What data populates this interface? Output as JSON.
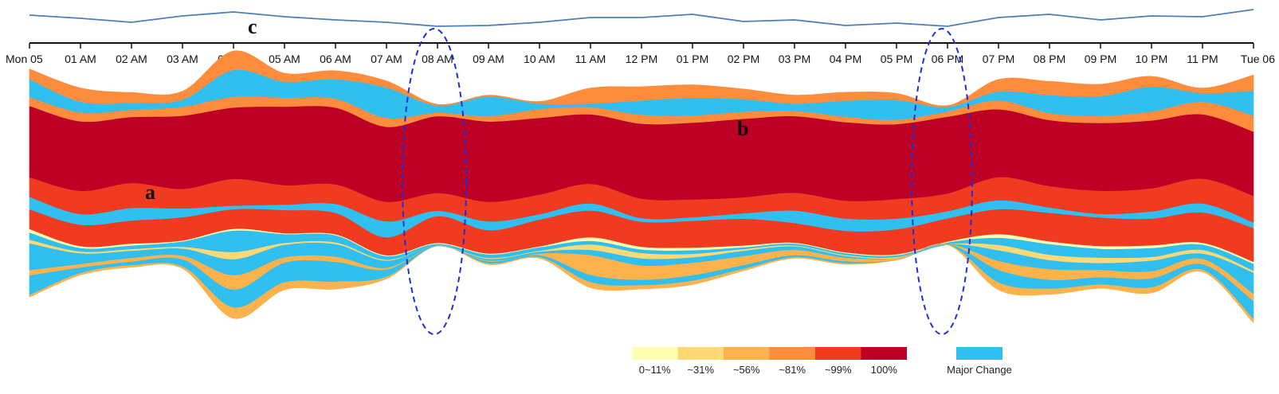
{
  "chart_data": {
    "type": "area",
    "x_ticks": [
      "Mon 05",
      "01 AM",
      "02 AM",
      "03 AM",
      "04 AM",
      "05 AM",
      "06 AM",
      "07 AM",
      "08 AM",
      "09 AM",
      "10 AM",
      "11 AM",
      "12 PM",
      "01 PM",
      "02 PM",
      "03 PM",
      "04 PM",
      "05 PM",
      "06 PM",
      "07 PM",
      "08 PM",
      "09 PM",
      "10 PM",
      "11 PM",
      "Tue 06"
    ],
    "overview_line": [
      11,
      15,
      20,
      12,
      7,
      13,
      17,
      20,
      25,
      24,
      20,
      14,
      14,
      10,
      19,
      17,
      24,
      21,
      25,
      14,
      10,
      17,
      12,
      13,
      4
    ],
    "annotations": [
      "a",
      "b",
      "c"
    ],
    "highlighted_hours": [
      "08 AM",
      "06 PM"
    ],
    "legend": [
      {
        "label": "0~11%",
        "color": "#ffffb2"
      },
      {
        "label": "~31%",
        "color": "#fed976"
      },
      {
        "label": "~56%",
        "color": "#feb24c"
      },
      {
        "label": "~81%",
        "color": "#fd8d3c"
      },
      {
        "label": "~99%",
        "color": "#f03b20"
      },
      {
        "label": "100%",
        "color": "#bd0026"
      },
      {
        "label": "Major Change",
        "color": "#30bfef"
      }
    ],
    "layers": [
      {
        "color": "#fd8d3c",
        "values": [
          12,
          16,
          12,
          10,
          22,
          10,
          10,
          8,
          2,
          2,
          3,
          18,
          16,
          15,
          12,
          10,
          10,
          8,
          2,
          14,
          16,
          14,
          12,
          6,
          18
        ]
      },
      {
        "color": "#30bfef",
        "values": [
          20,
          12,
          8,
          8,
          30,
          18,
          22,
          34,
          8,
          22,
          6,
          4,
          16,
          20,
          14,
          8,
          18,
          22,
          5,
          10,
          20,
          22,
          28,
          10,
          28
        ]
      },
      {
        "color": "#fd8d3c",
        "values": [
          10,
          10,
          8,
          10,
          12,
          10,
          10,
          10,
          4,
          6,
          10,
          8,
          10,
          8,
          8,
          6,
          6,
          5,
          6,
          10,
          8,
          8,
          10,
          14,
          18
        ]
      },
      {
        "color": "#bd0026",
        "values": [
          80,
          78,
          74,
          82,
          80,
          88,
          86,
          84,
          86,
          90,
          86,
          78,
          84,
          86,
          88,
          86,
          88,
          84,
          86,
          76,
          74,
          76,
          76,
          72,
          72
        ]
      },
      {
        "color": "#f03b20",
        "values": [
          22,
          26,
          28,
          22,
          30,
          22,
          22,
          22,
          20,
          22,
          22,
          22,
          22,
          20,
          18,
          20,
          20,
          22,
          20,
          26,
          24,
          26,
          26,
          28,
          30
        ]
      },
      {
        "color": "#30bfef",
        "values": [
          14,
          12,
          14,
          10,
          4,
          6,
          10,
          18,
          6,
          10,
          6,
          8,
          4,
          4,
          6,
          14,
          14,
          12,
          8,
          10,
          6,
          4,
          8,
          10,
          6
        ]
      },
      {
        "color": "#f03b20",
        "values": [
          22,
          24,
          26,
          26,
          22,
          26,
          24,
          20,
          30,
          26,
          30,
          30,
          28,
          30,
          30,
          22,
          24,
          28,
          26,
          28,
          32,
          32,
          30,
          34,
          38
        ]
      },
      {
        "color": "#ffffb2",
        "values": [
          4,
          2,
          2,
          1,
          2,
          1,
          1,
          1,
          1,
          1,
          1,
          4,
          3,
          3,
          2,
          1,
          1,
          1,
          1,
          4,
          3,
          3,
          3,
          2,
          2
        ]
      },
      {
        "color": "#30bfef",
        "values": [
          8,
          4,
          4,
          6,
          24,
          10,
          8,
          4,
          2,
          4,
          4,
          4,
          4,
          4,
          2,
          2,
          2,
          2,
          2,
          8,
          12,
          10,
          10,
          6,
          8
        ]
      },
      {
        "color": "#fed976",
        "values": [
          4,
          2,
          2,
          2,
          8,
          2,
          2,
          1,
          0,
          1,
          1,
          6,
          6,
          4,
          2,
          1,
          1,
          1,
          0,
          6,
          6,
          6,
          4,
          4,
          2
        ]
      },
      {
        "color": "#30bfef",
        "values": [
          30,
          12,
          8,
          8,
          18,
          14,
          14,
          8,
          0,
          2,
          2,
          6,
          8,
          6,
          6,
          4,
          2,
          0,
          0,
          12,
          10,
          8,
          12,
          6,
          24
        ]
      },
      {
        "color": "#feb24c",
        "values": [
          6,
          4,
          4,
          4,
          16,
          6,
          6,
          2,
          0,
          1,
          2,
          22,
          16,
          14,
          10,
          6,
          4,
          2,
          0,
          10,
          12,
          8,
          8,
          6,
          8
        ]
      },
      {
        "color": "#30bfef",
        "values": [
          22,
          6,
          4,
          8,
          20,
          22,
          22,
          8,
          0,
          2,
          2,
          8,
          6,
          6,
          4,
          2,
          2,
          0,
          0,
          14,
          10,
          8,
          10,
          6,
          20
        ]
      },
      {
        "color": "#feb24c",
        "values": [
          2,
          2,
          2,
          2,
          12,
          8,
          8,
          2,
          0,
          1,
          1,
          6,
          4,
          4,
          2,
          1,
          1,
          0,
          0,
          8,
          6,
          4,
          6,
          2,
          4
        ]
      }
    ]
  }
}
